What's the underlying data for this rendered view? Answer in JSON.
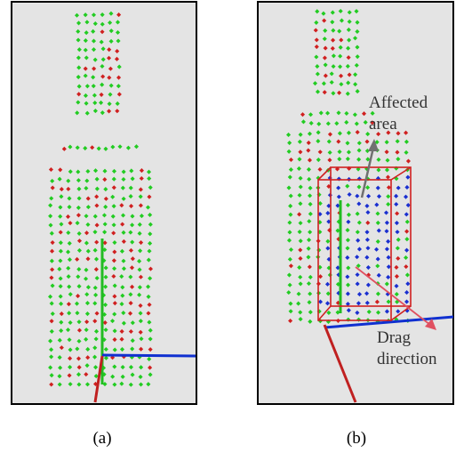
{
  "panels": [
    {
      "label": "(a)"
    },
    {
      "label": "(b)",
      "annotations": [
        "Affected area",
        "Drag direction"
      ]
    }
  ]
}
